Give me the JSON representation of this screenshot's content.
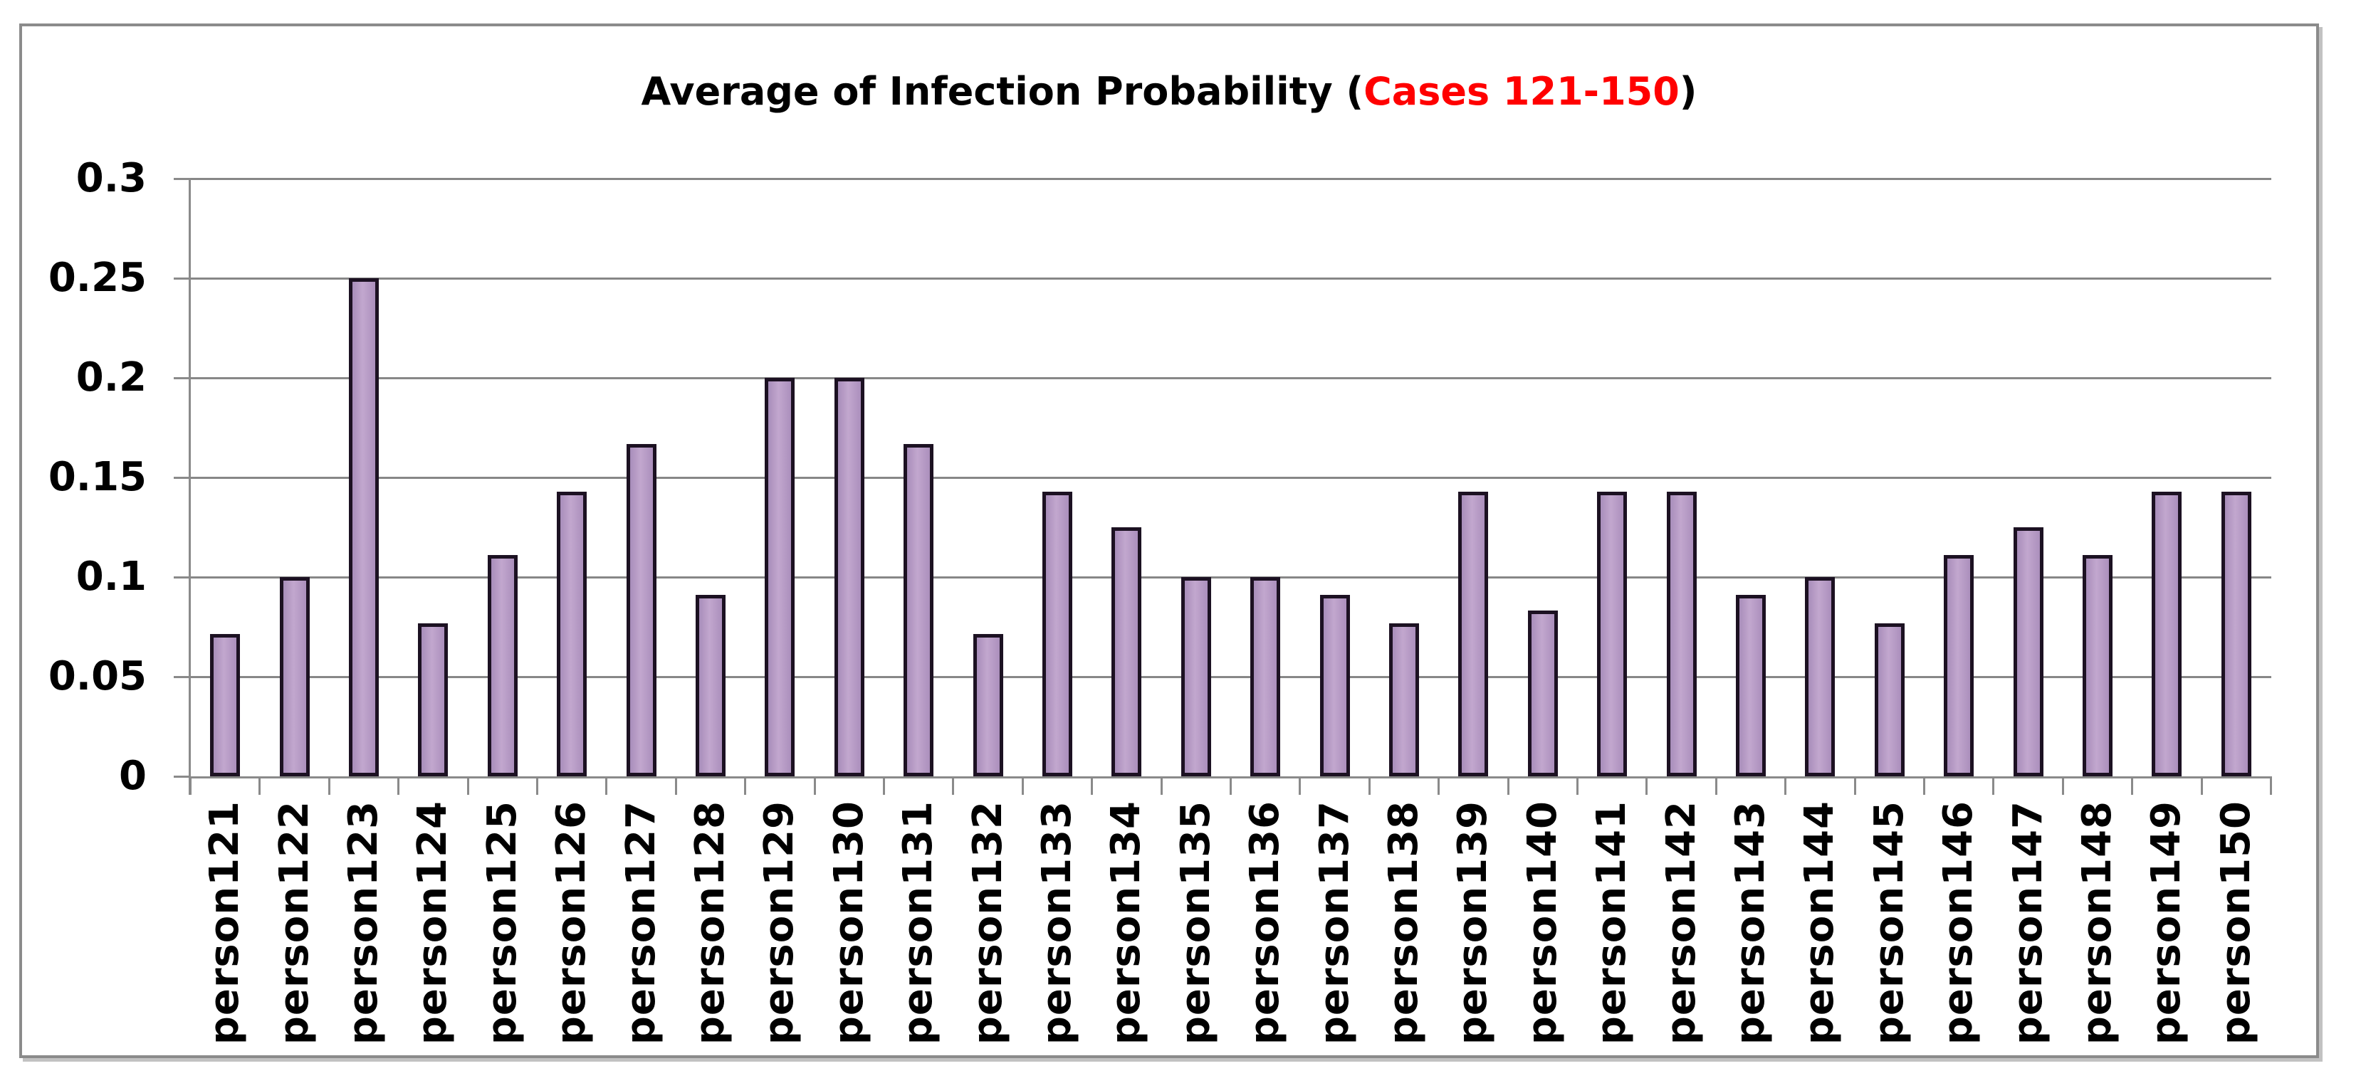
{
  "title": {
    "prefix": "Average of Infection Probability (",
    "highlight": "Cases 121-150",
    "suffix": ")",
    "highlight_color": "#ff0000",
    "text_color": "#000000"
  },
  "colors": {
    "bar_fill": "#b79cc9",
    "bar_border": "#1c1122",
    "gridline": "#878787",
    "axis": "#8a8a8a",
    "frame_border": "#8b8b8b",
    "background": "#ffffff",
    "title_highlight": "#ff0000",
    "text": "#000000"
  },
  "chart_data": {
    "type": "bar",
    "title": "Average of Infection Probability (Cases 121-150)",
    "xlabel": "",
    "ylabel": "",
    "ylim": [
      0,
      0.3
    ],
    "yticks": [
      0,
      0.05,
      0.1,
      0.15,
      0.2,
      0.25,
      0.3
    ],
    "ytick_labels": [
      "0",
      "0.05",
      "0.1",
      "0.15",
      "0.2",
      "0.25",
      "0.3"
    ],
    "grid": true,
    "legend": "none",
    "categories": [
      "person121",
      "person122",
      "person123",
      "person124",
      "person125",
      "person126",
      "person127",
      "person128",
      "person129",
      "person130",
      "person131",
      "person132",
      "person133",
      "person134",
      "person135",
      "person136",
      "person137",
      "person138",
      "person139",
      "person140",
      "person141",
      "person142",
      "person143",
      "person144",
      "person145",
      "person146",
      "person147",
      "person148",
      "person149",
      "person150"
    ],
    "values": [
      0.0714,
      0.1,
      0.25,
      0.0769,
      0.1111,
      0.1429,
      0.1667,
      0.0909,
      0.2,
      0.2,
      0.1667,
      0.0714,
      0.1429,
      0.125,
      0.1,
      0.1,
      0.0909,
      0.0769,
      0.1429,
      0.0833,
      0.1429,
      0.1429,
      0.0909,
      0.1,
      0.0769,
      0.1111,
      0.125,
      0.1111,
      0.1429,
      0.1429
    ]
  }
}
